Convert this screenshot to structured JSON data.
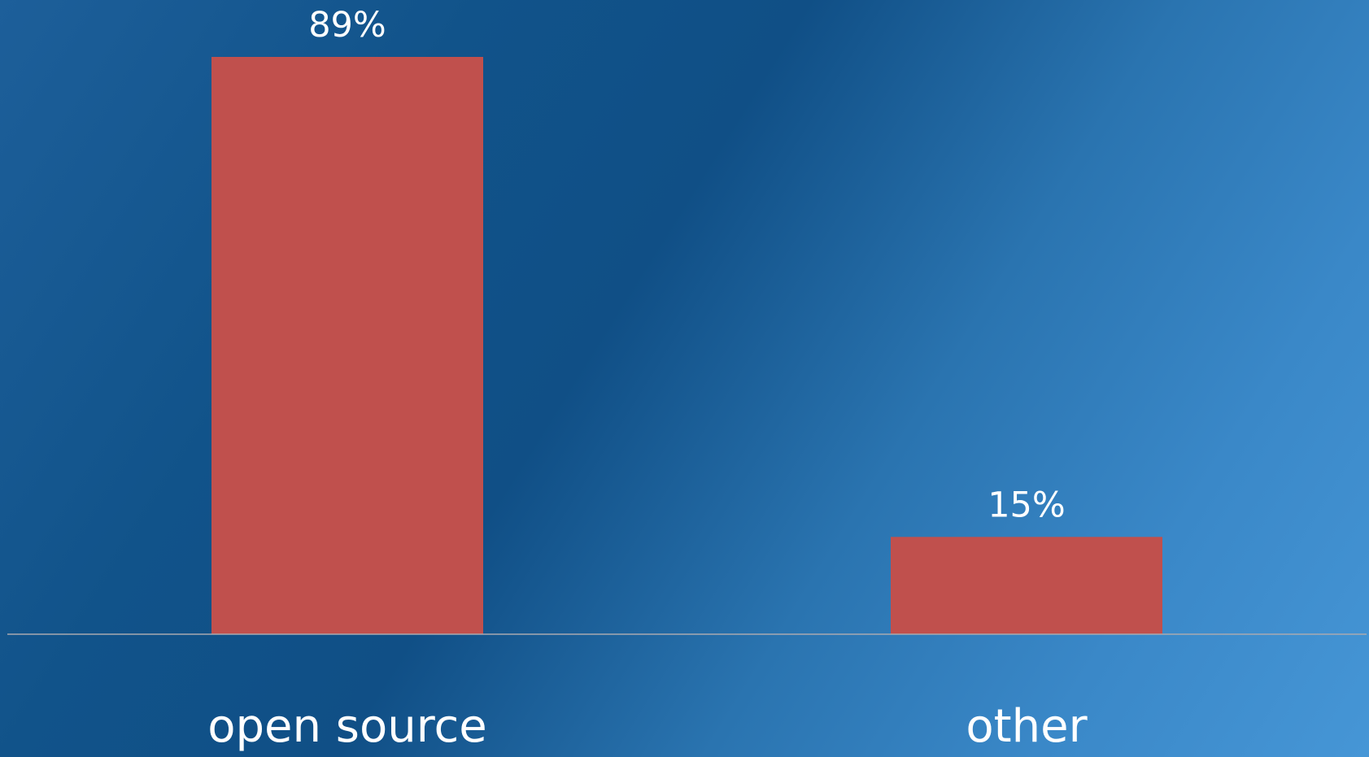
{
  "colors": {
    "bar": "#c0504d",
    "baseline": "#a9a9b0",
    "text": "#ffffff"
  },
  "chart_data": {
    "type": "bar",
    "title": "",
    "xlabel": "",
    "ylabel": "",
    "categories": [
      "open source",
      "other"
    ],
    "values": [
      89,
      15
    ],
    "value_labels": [
      "89%",
      "15%"
    ],
    "ylim": [
      0,
      89
    ],
    "grid": false,
    "legend": "none"
  }
}
